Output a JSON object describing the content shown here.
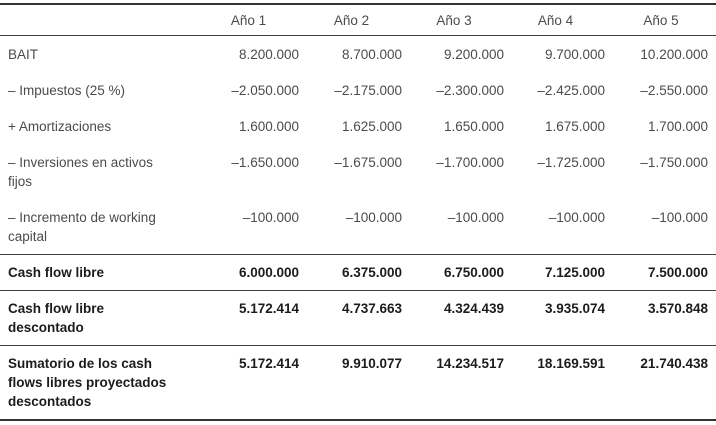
{
  "table": {
    "header": [
      "",
      "Año 1",
      "Año 2",
      "Año 3",
      "Año 4",
      "Año 5"
    ],
    "rows": [
      {
        "label": "BAIT",
        "values": [
          "8.200.000",
          "8.700.000",
          "9.200.000",
          "9.700.000",
          "10.200.000"
        ],
        "style": "normal",
        "rule_above": false
      },
      {
        "label": "– Impuestos (25 %)",
        "values": [
          "–2.050.000",
          "–2.175.000",
          "–2.300.000",
          "–2.425.000",
          "–2.550.000"
        ],
        "style": "normal",
        "rule_above": false
      },
      {
        "label": "+ Amortizaciones",
        "values": [
          "1.600.000",
          "1.625.000",
          "1.650.000",
          "1.675.000",
          "1.700.000"
        ],
        "style": "normal",
        "rule_above": false
      },
      {
        "label": "– Inversiones en activos\nfijos",
        "values": [
          "–1.650.000",
          "–1.675.000",
          "–1.700.000",
          "–1.725.000",
          "–1.750.000"
        ],
        "style": "normal",
        "rule_above": false
      },
      {
        "label": "– Incremento de working\ncapital",
        "values": [
          "–100.000",
          "–100.000",
          "–100.000",
          "–100.000",
          "–100.000"
        ],
        "style": "normal",
        "rule_above": false
      },
      {
        "label": "Cash flow libre",
        "values": [
          "6.000.000",
          "6.375.000",
          "6.750.000",
          "7.125.000",
          "7.500.000"
        ],
        "style": "bold",
        "rule_above": true
      },
      {
        "label": "Cash flow libre\ndescontado",
        "values": [
          "5.172.414",
          "4.737.663",
          "4.324.439",
          "3.935.074",
          "3.570.848"
        ],
        "style": "bold",
        "rule_above": true
      },
      {
        "label": "Sumatorio de los cash\nflows libres proyectados\ndescontados",
        "values": [
          "5.172.414",
          "9.910.077",
          "14.234.517",
          "18.169.591",
          "21.740.438"
        ],
        "style": "bold",
        "rule_above": true
      }
    ]
  },
  "colors": {
    "text_normal": "#4b4b4b",
    "text_bold": "#1c1c1c",
    "rule": "#3e3e3e",
    "background": "#ffffff"
  },
  "chart_data": {
    "type": "table",
    "columns": [
      "Año 1",
      "Año 2",
      "Año 3",
      "Año 4",
      "Año 5"
    ],
    "rows": [
      {
        "label": "BAIT",
        "values": [
          8200000,
          8700000,
          9200000,
          9700000,
          10200000
        ]
      },
      {
        "label": "– Impuestos (25 %)",
        "values": [
          -2050000,
          -2175000,
          -2300000,
          -2425000,
          -2550000
        ]
      },
      {
        "label": "+ Amortizaciones",
        "values": [
          1600000,
          1625000,
          1650000,
          1675000,
          1700000
        ]
      },
      {
        "label": "– Inversiones en activos fijos",
        "values": [
          -1650000,
          -1675000,
          -1700000,
          -1725000,
          -1750000
        ]
      },
      {
        "label": "– Incremento de working capital",
        "values": [
          -100000,
          -100000,
          -100000,
          -100000,
          -100000
        ]
      },
      {
        "label": "Cash flow libre",
        "values": [
          6000000,
          6375000,
          6750000,
          7125000,
          7500000
        ]
      },
      {
        "label": "Cash flow libre descontado",
        "values": [
          5172414,
          4737663,
          4324439,
          3935074,
          3570848
        ]
      },
      {
        "label": "Sumatorio de los cash flows libres proyectados descontados",
        "values": [
          5172414,
          9910077,
          14234517,
          18169591,
          21740438
        ]
      }
    ]
  }
}
